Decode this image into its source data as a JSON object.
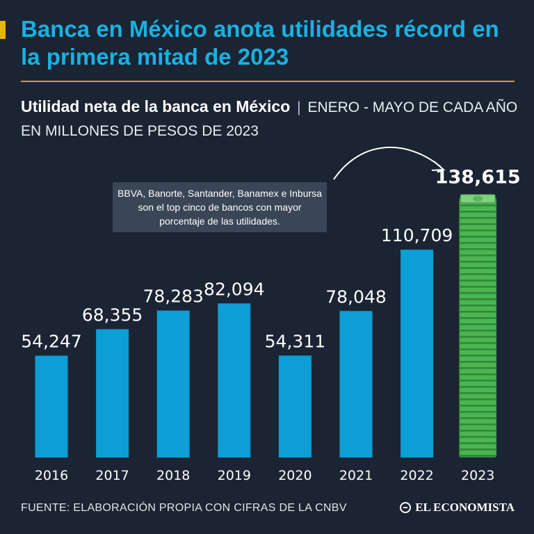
{
  "header": {
    "headline": "Banca en México anota utilidades récord en la primera mitad de 2023"
  },
  "subtitle": {
    "bold": "Utilidad neta de la banca en México",
    "separator": "|",
    "rest": "ENERO - MAYO DE CADA AÑO EN MILLONES DE PESOS DE 2023"
  },
  "callout": {
    "text": "BBVA, Banorte, Santander, Banamex e Inbursa son el top cinco de bancos con mayor porcentaje de las utilidades."
  },
  "chart_data": {
    "type": "bar",
    "title": "Utilidad neta de la banca en México",
    "subtitle": "ENERO - MAYO DE CADA AÑO EN MILLONES DE PESOS DE 2023",
    "categories": [
      "2016",
      "2017",
      "2018",
      "2019",
      "2020",
      "2021",
      "2022",
      "2023"
    ],
    "values": [
      54247,
      68355,
      78283,
      82094,
      54311,
      78048,
      110709,
      138615
    ],
    "value_labels": [
      "54,247",
      "68,355",
      "78,283",
      "82,094",
      "54,311",
      "78,048",
      "110,709",
      "138,615"
    ],
    "highlight_category": "2023",
    "xlabel": "",
    "ylabel": "",
    "ylim": [
      0,
      140000
    ],
    "grid": false,
    "colors": {
      "bar": "#0c9ed4",
      "highlight": "#3aa545",
      "background": "#1b2433"
    }
  },
  "footer": {
    "source": "FUENTE: ELABORACIÓN PROPIA CON CIFRAS DE LA CNBV",
    "logo": "EL ECONOMISTA"
  }
}
